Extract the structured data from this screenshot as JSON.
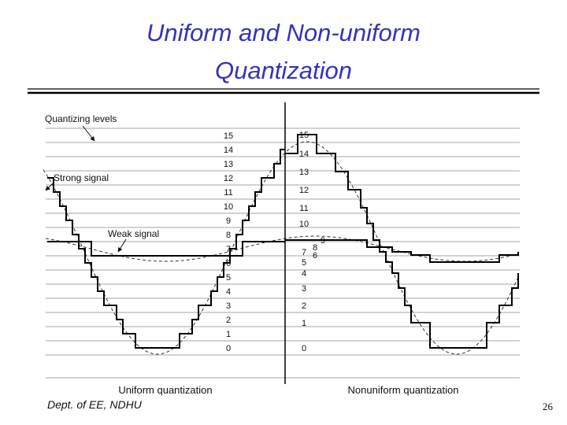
{
  "title": [
    "Uniform and Non-uniform",
    "Quantization"
  ],
  "figure": {
    "annotations": {
      "quantizing_levels": "Quantizing levels",
      "strong_signal": "Strong signal",
      "weak_signal": "Weak signal"
    },
    "uniform": {
      "caption": "Uniform quantization",
      "levels": [
        0,
        1,
        2,
        3,
        4,
        5,
        6,
        7,
        8,
        9,
        10,
        11,
        12,
        13,
        14,
        15
      ]
    },
    "nonuniform": {
      "caption": "Nonuniform quantization",
      "levels": [
        0,
        1,
        2,
        3,
        4,
        5,
        6,
        7,
        8,
        9,
        10,
        11,
        12,
        13,
        14,
        15
      ]
    }
  },
  "footer": {
    "department": "Dept. of EE, NDHU",
    "page": "26"
  }
}
